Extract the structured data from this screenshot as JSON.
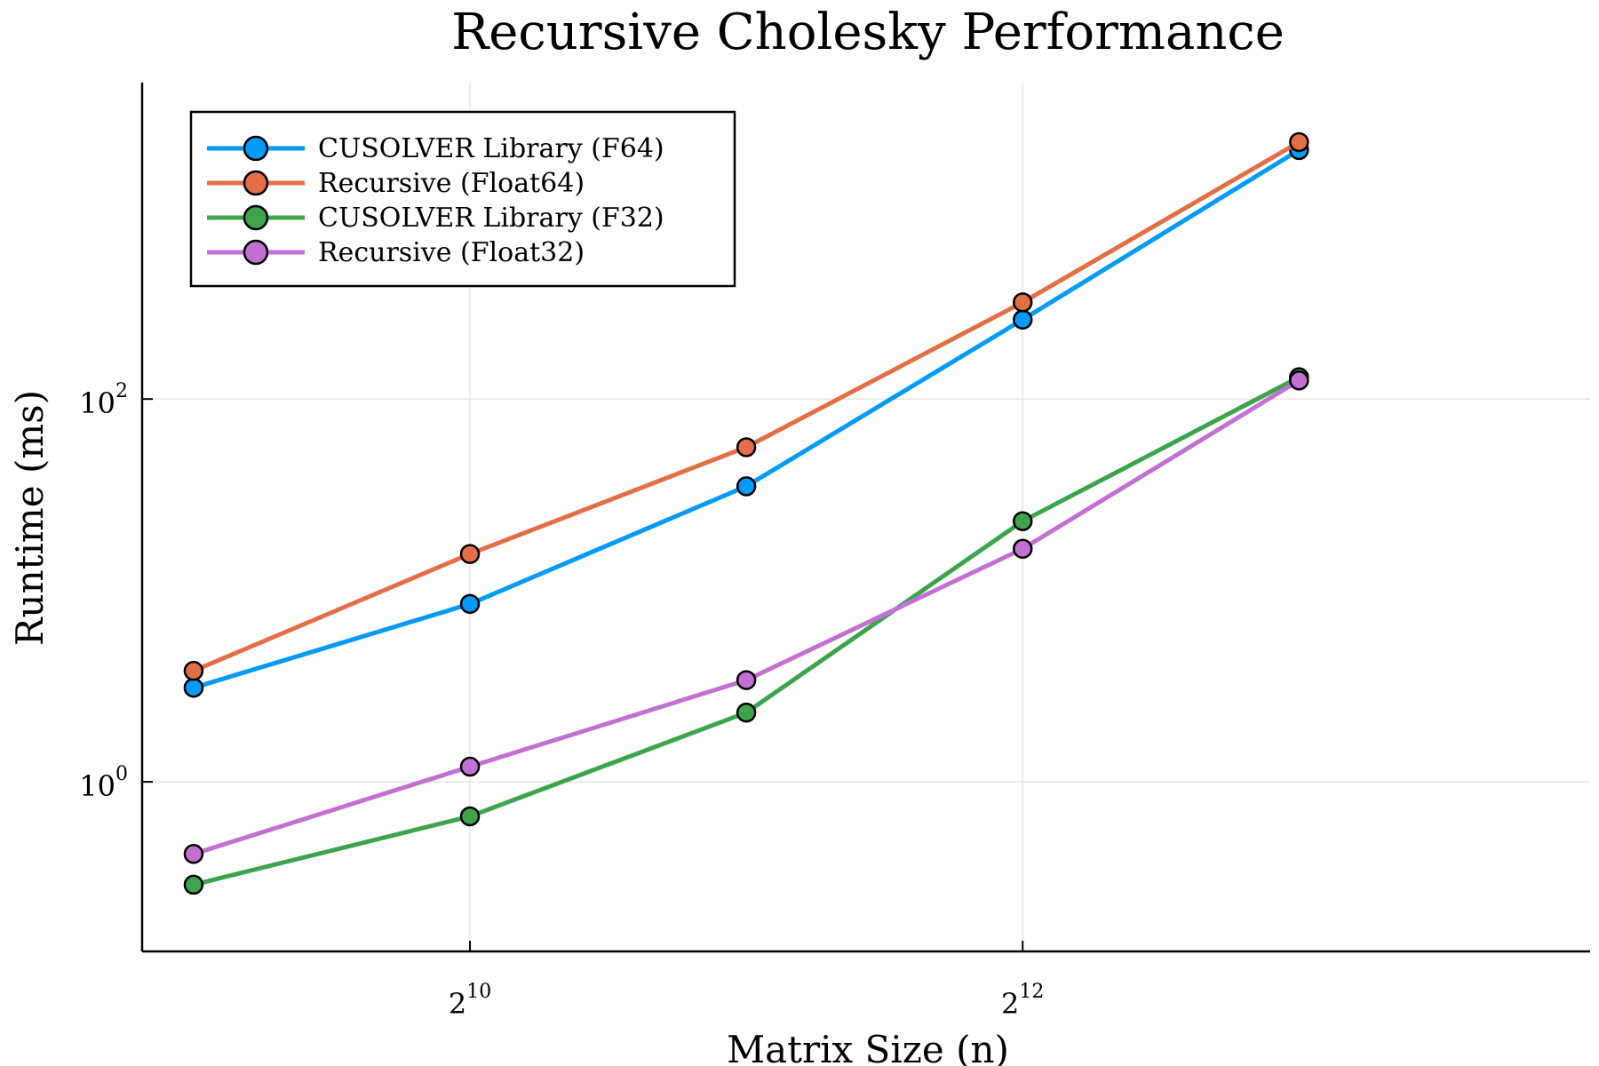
{
  "chart_data": {
    "type": "line",
    "title": "Recursive Cholesky Performance",
    "xlabel": "Matrix Size (n)",
    "ylabel": "Runtime (ms)",
    "x_scale": "log2",
    "y_scale": "log10",
    "x": [
      512,
      1024,
      2048,
      4096,
      8192
    ],
    "xlim": [
      450,
      17000
    ],
    "ylim": [
      0.13,
      4500
    ],
    "x_ticks": [
      {
        "value": 1024,
        "base": "2",
        "exp": "10"
      },
      {
        "value": 4096,
        "base": "2",
        "exp": "12"
      }
    ],
    "y_ticks": [
      {
        "value": 1,
        "base": "10",
        "exp": "0"
      },
      {
        "value": 100,
        "base": "10",
        "exp": "2"
      }
    ],
    "grid": true,
    "legend_position": "top-left",
    "series": [
      {
        "name": "CUSOLVER Library (F64)",
        "color": "#009af9",
        "values": [
          3.1,
          8.5,
          35,
          260,
          2000
        ]
      },
      {
        "name": "Recursive (Float64)",
        "color": "#e26f46",
        "values": [
          3.8,
          15.5,
          56,
          320,
          2200
        ]
      },
      {
        "name": "CUSOLVER Library (F32)",
        "color": "#3da44d",
        "values": [
          0.29,
          0.66,
          2.3,
          23,
          130
        ]
      },
      {
        "name": "Recursive (Float32)",
        "color": "#c271d2",
        "values": [
          0.42,
          1.2,
          3.4,
          16.5,
          125
        ]
      }
    ]
  }
}
